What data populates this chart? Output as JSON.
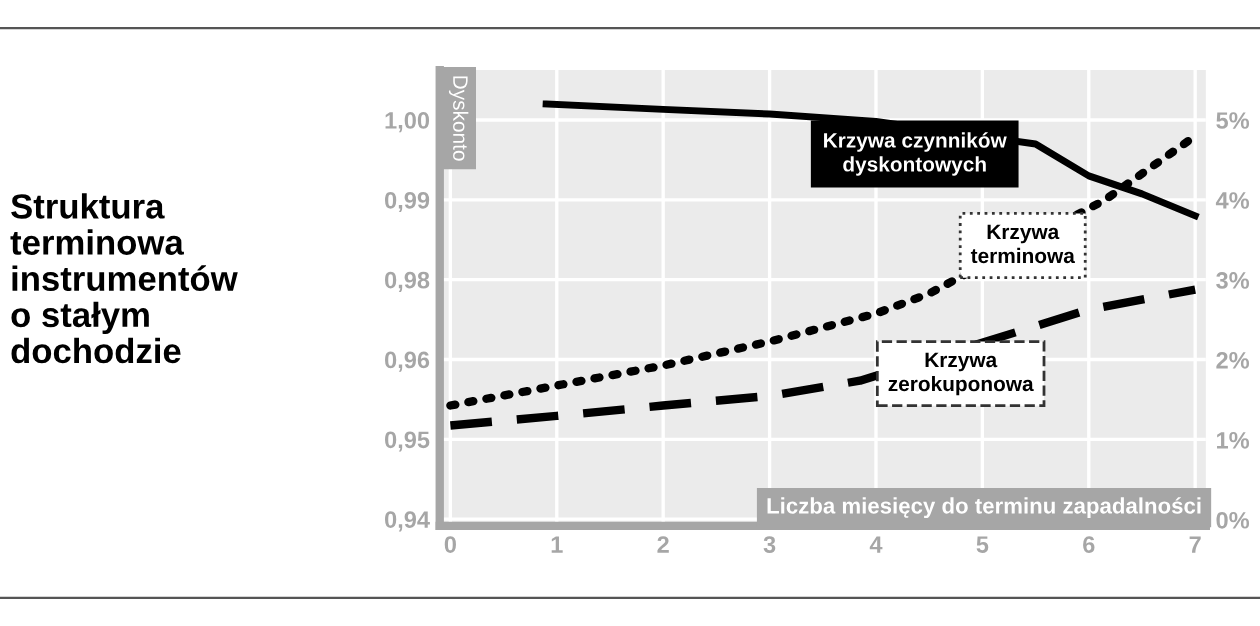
{
  "chart_data": {
    "type": "line",
    "title": "Struktura\nterminowa\ninstrumentów\no stałym\ndochodzie",
    "ylabel": "Dyskonto",
    "xlabel": "Liczba miesięcy do terminu zapadalności",
    "xlim": [
      -0.1,
      7.1
    ],
    "xticks": [
      0,
      1,
      2,
      3,
      4,
      5,
      6,
      7
    ],
    "ylim": [
      0.939,
      1.0075
    ],
    "yticks": [
      {
        "value": 0.94,
        "label": "0,94"
      },
      {
        "value": 0.952,
        "label": "0,95"
      },
      {
        "value": 0.964,
        "label": "0,96"
      },
      {
        "value": 0.976,
        "label": "0,98"
      },
      {
        "value": 0.988,
        "label": "0,99"
      },
      {
        "value": 1.0,
        "label": "1,00"
      }
    ],
    "y2lim": [
      -0.075,
      5.625
    ],
    "y2ticks": [
      {
        "value": 0,
        "label": "0%"
      },
      {
        "value": 1,
        "label": "1%"
      },
      {
        "value": 2,
        "label": "2%"
      },
      {
        "value": 3,
        "label": "3%"
      },
      {
        "value": 4,
        "label": "4%"
      },
      {
        "value": 5,
        "label": "5%"
      }
    ],
    "grid": true,
    "series": [
      {
        "color": "#000000",
        "line_style": "solid",
        "x": [
          0.9,
          2,
          3,
          4,
          5.5,
          6,
          6.5,
          7
        ],
        "values": [
          1.0024,
          1.0016,
          1.0009,
          0.9998,
          0.9964,
          0.9916,
          0.9889,
          0.9856
        ]
      },
      {
        "color": "#000000",
        "line_style": "dotted",
        "axis": "y2",
        "x": [
          0,
          1,
          2,
          3,
          4,
          4.5,
          6.15,
          7
        ],
        "values": [
          1.43,
          1.68,
          1.93,
          2.23,
          2.58,
          2.83,
          4.0,
          4.8
        ]
      },
      {
        "color": "#000000",
        "line_style": "dashed",
        "axis": "y2",
        "x": [
          0,
          1,
          2,
          3,
          3.85,
          6,
          7
        ],
        "values": [
          1.18,
          1.3,
          1.43,
          1.55,
          1.74,
          2.63,
          2.88
        ]
      }
    ],
    "annotations": [
      "Krzywa czynników\ndyskontowych",
      "Krzywa\nterminowa",
      "Krzywa\nzerokuponowa"
    ]
  }
}
